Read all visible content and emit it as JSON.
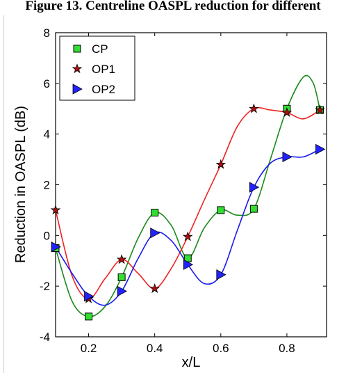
{
  "caption": "Figure 13. Centreline OASPL reduction for different",
  "chart_data": {
    "type": "line",
    "xlabel": "x/L",
    "ylabel": "Reduction in OASPL (dB)",
    "xlim": [
      0.1,
      0.92
    ],
    "ylim": [
      -4,
      8
    ],
    "xticks": [
      0.2,
      0.4,
      0.6,
      0.8
    ],
    "yticks": [
      -4,
      -2,
      0,
      2,
      4,
      6,
      8
    ],
    "grid": false,
    "legend_position": "top-left",
    "series": [
      {
        "name": "CP",
        "marker": "square",
        "line_color": "#1a8a1a",
        "marker_color": "#33dd33",
        "x": [
          0.1,
          0.2,
          0.3,
          0.4,
          0.5,
          0.6,
          0.7,
          0.8,
          0.9
        ],
        "y": [
          -0.5,
          -3.2,
          -1.65,
          0.9,
          -0.9,
          1.0,
          1.05,
          5.0,
          4.95
        ],
        "curve_x": [
          0.1,
          0.15,
          0.2,
          0.25,
          0.3,
          0.35,
          0.4,
          0.45,
          0.5,
          0.55,
          0.6,
          0.65,
          0.7,
          0.75,
          0.8,
          0.85,
          0.88,
          0.9
        ],
        "curve_y": [
          -0.5,
          -2.6,
          -3.2,
          -2.8,
          -1.65,
          -0.1,
          0.9,
          0.4,
          -0.9,
          0.3,
          1.0,
          0.8,
          1.05,
          3.0,
          5.0,
          6.25,
          6.0,
          4.95
        ]
      },
      {
        "name": "OP1",
        "marker": "star",
        "line_color": "#ee2222",
        "marker_color": "#aa1111",
        "x": [
          0.1,
          0.2,
          0.3,
          0.4,
          0.5,
          0.6,
          0.7,
          0.8,
          0.9
        ],
        "y": [
          1.0,
          -2.5,
          -0.95,
          -2.1,
          -0.05,
          2.8,
          5.0,
          4.85,
          4.95
        ],
        "curve_x": [
          0.1,
          0.15,
          0.2,
          0.25,
          0.3,
          0.35,
          0.4,
          0.45,
          0.5,
          0.55,
          0.6,
          0.65,
          0.7,
          0.75,
          0.8,
          0.85,
          0.9
        ],
        "curve_y": [
          1.0,
          -1.6,
          -2.5,
          -1.7,
          -0.95,
          -1.5,
          -2.1,
          -1.3,
          -0.05,
          1.4,
          2.8,
          4.3,
          5.0,
          4.95,
          4.85,
          4.6,
          4.95
        ]
      },
      {
        "name": "OP2",
        "marker": "triangle-right",
        "line_color": "#1a1aee",
        "marker_color": "#2222ff",
        "x": [
          0.1,
          0.2,
          0.3,
          0.4,
          0.5,
          0.6,
          0.7,
          0.8,
          0.9
        ],
        "y": [
          -0.45,
          -2.4,
          -2.2,
          0.1,
          -1.15,
          -1.55,
          1.9,
          3.1,
          3.4
        ],
        "curve_x": [
          0.1,
          0.15,
          0.2,
          0.25,
          0.3,
          0.35,
          0.4,
          0.45,
          0.5,
          0.55,
          0.6,
          0.65,
          0.7,
          0.75,
          0.8,
          0.85,
          0.9
        ],
        "curve_y": [
          -0.45,
          -1.5,
          -2.4,
          -2.75,
          -2.2,
          -0.9,
          0.1,
          -0.2,
          -1.15,
          -1.9,
          -1.55,
          0.2,
          1.9,
          2.85,
          3.1,
          3.1,
          3.4
        ]
      }
    ]
  }
}
